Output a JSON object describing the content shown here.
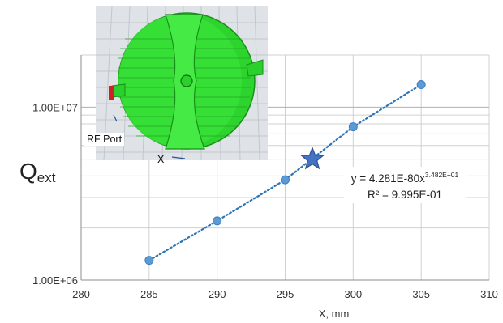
{
  "chart_data": {
    "type": "scatter",
    "x": [
      285,
      290,
      295,
      300,
      305
    ],
    "y": [
      1300000,
      2200000,
      3800000,
      7700000,
      13500000
    ],
    "trendline": {
      "type": "power",
      "style": "dotted"
    },
    "marked_point": {
      "x": 297,
      "y": 5000000,
      "marker": "star"
    },
    "xlabel": "X, mm",
    "ylabel": {
      "main": "Q",
      "sub": "ext"
    },
    "xlim": [
      280,
      310
    ],
    "ylim": [
      1000000,
      20000000
    ],
    "y_scale": "log",
    "x_ticks": [
      "280",
      "285",
      "290",
      "295",
      "300",
      "305",
      "310"
    ],
    "y_tick_labels": [
      "1.00E+06",
      "1.00E+07"
    ],
    "equation": {
      "prefix": "y = 4.281E-80x",
      "exponent": "3.482E+01"
    },
    "r_squared": "R² = 9.995E-01",
    "colors": {
      "series": "#5b9bd5",
      "trendline": "#2e75b6",
      "star": "#4472c4",
      "grid": "#d0d0d0"
    }
  },
  "inset": {
    "rf_port_label": "RF Port",
    "x_label": "X",
    "colors": {
      "body": "#2bd12b",
      "port": "#cc2222",
      "mesh": "#c7ccd1",
      "background": "#dfe3e8"
    }
  }
}
